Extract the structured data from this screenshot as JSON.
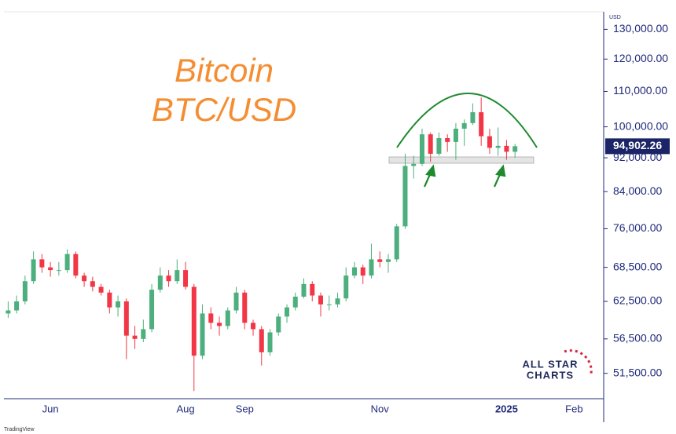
{
  "chart_data": {
    "type": "candlestick",
    "title": "Bitcoin",
    "subtitle": "BTC/USD",
    "currency": "USD",
    "log_scale": true,
    "up_color": "#4caf7d",
    "down_color": "#f23645",
    "ylim": [
      48100,
      136300
    ],
    "yticks": [
      {
        "value": 51500,
        "label": "51,500.00"
      },
      {
        "value": 56500,
        "label": "56,500.00"
      },
      {
        "value": 62500,
        "label": "62,500.00"
      },
      {
        "value": 68500,
        "label": "68,500.00"
      },
      {
        "value": 76000,
        "label": "76,000.00"
      },
      {
        "value": 84000,
        "label": "84,000.00"
      },
      {
        "value": 92000,
        "label": "92,000.00"
      },
      {
        "value": 100000,
        "label": "100,000.00"
      },
      {
        "value": 110000,
        "label": "110,000.00"
      },
      {
        "value": 120000,
        "label": "120,000.00"
      },
      {
        "value": 130000,
        "label": "130,000.00"
      }
    ],
    "categories": [
      null,
      null,
      null,
      null,
      null,
      "Jun",
      null,
      null,
      null,
      null,
      null,
      null,
      null,
      null,
      null,
      null,
      null,
      null,
      null,
      null,
      null,
      "Aug",
      null,
      null,
      null,
      null,
      null,
      null,
      "Sep",
      null,
      null,
      null,
      null,
      null,
      null,
      null,
      null,
      null,
      null,
      null,
      null,
      null,
      null,
      null,
      "Nov",
      null,
      null,
      null,
      null,
      null,
      null,
      null,
      null,
      null,
      null,
      null,
      null,
      null,
      null,
      "2025",
      null,
      null,
      null,
      null,
      null,
      null,
      null,
      "Feb",
      null,
      null,
      null
    ],
    "open": [
      60500,
      61000,
      62500,
      66000,
      70000,
      68500,
      68000,
      68000,
      71000,
      67000,
      66000,
      65000,
      64000,
      61500,
      62500,
      57000,
      56500,
      58000,
      64500,
      67000,
      66000,
      68000,
      65000,
      54000,
      60500,
      59000,
      58500,
      61000,
      64000,
      59000,
      58000,
      54500,
      57500,
      60000,
      61500,
      63300,
      65500,
      63500,
      62000,
      62000,
      63000,
      67000,
      68500,
      67000,
      70000,
      69500,
      70000,
      76500,
      90000,
      90500,
      98000,
      93000,
      97000,
      96000,
      99500,
      101000,
      104000,
      97500,
      94500,
      95000,
      93500,
      null,
      null,
      null,
      null,
      null,
      null,
      null,
      null,
      null,
      null
    ],
    "high": [
      62500,
      63500,
      67000,
      71500,
      71000,
      69500,
      69500,
      71900,
      71500,
      67500,
      66800,
      65500,
      64500,
      63500,
      63000,
      58500,
      59500,
      65500,
      68500,
      68000,
      70000,
      69500,
      65500,
      62000,
      61500,
      60000,
      61500,
      65000,
      64500,
      59500,
      58500,
      58000,
      60500,
      62000,
      64000,
      66500,
      66000,
      64000,
      63500,
      64000,
      68500,
      69500,
      69000,
      73000,
      71500,
      71000,
      77000,
      93000,
      92500,
      99500,
      98500,
      98500,
      98000,
      101000,
      102000,
      106500,
      108200,
      99500,
      99800,
      96500,
      95500,
      null,
      null,
      null,
      null,
      null,
      null,
      null,
      null,
      null,
      null
    ],
    "low": [
      59800,
      60500,
      62000,
      65500,
      67500,
      66800,
      67000,
      67500,
      66500,
      65000,
      64200,
      63500,
      60500,
      60000,
      53500,
      55000,
      56000,
      57500,
      64000,
      65000,
      65500,
      64500,
      49100,
      53500,
      58000,
      57000,
      58000,
      60500,
      58000,
      57000,
      52600,
      54000,
      57000,
      59000,
      61000,
      63000,
      62500,
      60000,
      61000,
      61500,
      62500,
      66500,
      65500,
      66500,
      68500,
      67500,
      69500,
      76000,
      87000,
      90000,
      91000,
      92500,
      93500,
      91500,
      95000,
      100500,
      95000,
      93000,
      92500,
      91500,
      92000,
      null,
      null,
      null,
      null,
      null,
      null,
      null,
      null,
      null,
      null
    ],
    "close": [
      61000,
      62500,
      66000,
      70000,
      68500,
      68000,
      68000,
      71000,
      67000,
      66000,
      65000,
      64000,
      61500,
      62500,
      57000,
      56500,
      58000,
      64500,
      67000,
      66000,
      68000,
      65000,
      54000,
      60500,
      59000,
      58500,
      61000,
      64000,
      59000,
      58000,
      54500,
      57500,
      60000,
      61500,
      63300,
      65500,
      63500,
      62000,
      62000,
      63000,
      67000,
      68500,
      67000,
      70000,
      69500,
      70000,
      76500,
      90000,
      90500,
      98000,
      93000,
      97000,
      96000,
      99500,
      101000,
      104000,
      97500,
      94500,
      95000,
      93500,
      94902.26,
      null,
      null,
      null,
      null,
      null,
      null,
      null,
      null,
      null,
      null
    ],
    "last_label": "94,902.26",
    "logo": [
      "ALL STAR",
      "CHARTS"
    ],
    "footer": "TradingView"
  }
}
